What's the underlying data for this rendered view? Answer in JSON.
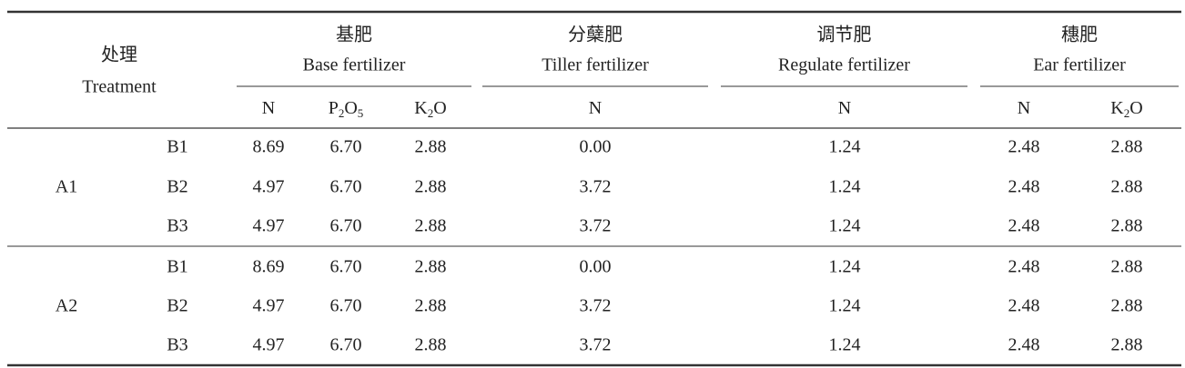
{
  "table": {
    "header": {
      "treatment_zh": "处理",
      "treatment_en": "Treatment",
      "groups": [
        {
          "zh": "基肥",
          "en": "Base fertilizer",
          "columns": [
            [
              {
                "text": "N"
              }
            ],
            [
              {
                "text": "P"
              },
              {
                "text": "2",
                "sub": true
              },
              {
                "text": "O"
              },
              {
                "text": "5",
                "sub": true
              }
            ],
            [
              {
                "text": "K"
              },
              {
                "text": "2",
                "sub": true
              },
              {
                "text": "O"
              }
            ]
          ]
        },
        {
          "zh": "分蘖肥",
          "en": "Tiller fertilizer",
          "columns": [
            [
              {
                "text": "N"
              }
            ]
          ]
        },
        {
          "zh": "调节肥",
          "en": "Regulate fertilizer",
          "columns": [
            [
              {
                "text": "N"
              }
            ]
          ]
        },
        {
          "zh": "穗肥",
          "en": "Ear fertilizer",
          "columns": [
            [
              {
                "text": "N"
              }
            ],
            [
              {
                "text": "K"
              },
              {
                "text": "2",
                "sub": true
              },
              {
                "text": "O"
              }
            ]
          ]
        }
      ]
    },
    "blocks": [
      {
        "label": "A1",
        "rows": [
          {
            "label": "B1",
            "cells": [
              "8.69",
              "6.70",
              "2.88",
              "0.00",
              "1.24",
              "2.48",
              "2.88"
            ]
          },
          {
            "label": "B2",
            "cells": [
              "4.97",
              "6.70",
              "2.88",
              "3.72",
              "1.24",
              "2.48",
              "2.88"
            ]
          },
          {
            "label": "B3",
            "cells": [
              "4.97",
              "6.70",
              "2.88",
              "3.72",
              "1.24",
              "2.48",
              "2.88"
            ]
          }
        ]
      },
      {
        "label": "A2",
        "rows": [
          {
            "label": "B1",
            "cells": [
              "8.69",
              "6.70",
              "2.88",
              "0.00",
              "1.24",
              "2.48",
              "2.88"
            ]
          },
          {
            "label": "B2",
            "cells": [
              "4.97",
              "6.70",
              "2.88",
              "3.72",
              "1.24",
              "2.48",
              "2.88"
            ]
          },
          {
            "label": "B3",
            "cells": [
              "4.97",
              "6.70",
              "2.88",
              "3.72",
              "1.24",
              "2.48",
              "2.88"
            ]
          }
        ]
      }
    ]
  }
}
